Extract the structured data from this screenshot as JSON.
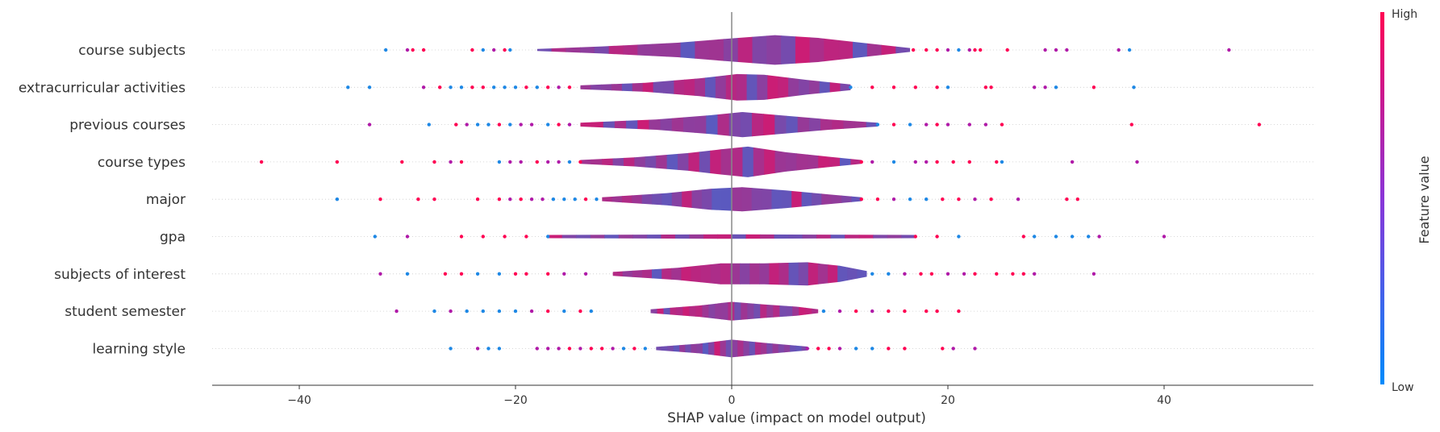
{
  "chart_data": {
    "type": "violin",
    "xlabel": "SHAP value (impact on model output)",
    "xlim": [
      -48,
      53
    ],
    "xticks": [
      -40,
      -20,
      0,
      20,
      40
    ],
    "features": [
      {
        "name": "course subjects",
        "min": -32,
        "max": 46,
        "outliers": [
          -32,
          -30,
          -29.5,
          -28.5,
          -24,
          -23,
          -22,
          -21,
          -20.5,
          16.8,
          18,
          19,
          20,
          21,
          22,
          22.5,
          23,
          25.5,
          29,
          30,
          31,
          35.8,
          36.8,
          46
        ],
        "shape": [
          [
            -18,
            0.06
          ],
          [
            -12,
            0.22
          ],
          [
            -5,
            0.45
          ],
          [
            0,
            0.72
          ],
          [
            4,
            0.92
          ],
          [
            8,
            0.75
          ],
          [
            12,
            0.45
          ],
          [
            16.5,
            0.12
          ]
        ]
      },
      {
        "name": "extracurricular activities",
        "min": -35.5,
        "max": 37.2,
        "outliers": [
          -35.5,
          -33.5,
          -28.5,
          -27,
          -26,
          -25,
          -24,
          -23,
          -22,
          -21,
          -20,
          -19,
          -18,
          -17,
          -16,
          -15,
          11,
          13,
          15,
          17,
          19,
          20,
          23.5,
          24,
          28,
          29,
          30,
          33.5,
          37.2
        ],
        "shape": [
          [
            -14,
            0.12
          ],
          [
            -8,
            0.28
          ],
          [
            -3,
            0.55
          ],
          [
            0.5,
            0.82
          ],
          [
            3,
            0.78
          ],
          [
            7,
            0.45
          ],
          [
            11,
            0.18
          ]
        ]
      },
      {
        "name": "previous courses",
        "min": -33.5,
        "max": 48.8,
        "outliers": [
          -33.5,
          -28,
          -25.5,
          -24.5,
          -23.5,
          -22.5,
          -21.5,
          -20.5,
          -19.5,
          -18.5,
          -17,
          -16,
          -15,
          13.5,
          15,
          16.5,
          18,
          19,
          20,
          22,
          23.5,
          25,
          37,
          48.8
        ],
        "shape": [
          [
            -14,
            0.12
          ],
          [
            -7,
            0.32
          ],
          [
            -2,
            0.58
          ],
          [
            1,
            0.78
          ],
          [
            5,
            0.55
          ],
          [
            9,
            0.32
          ],
          [
            13.5,
            0.12
          ]
        ]
      },
      {
        "name": "course types",
        "min": -43.5,
        "max": 37.5,
        "outliers": [
          -43.5,
          -36.5,
          -30.5,
          -27.5,
          -26,
          -25,
          -21.5,
          -20.5,
          -19.5,
          -18,
          -17,
          -16,
          -15,
          -14,
          12,
          13,
          15,
          17,
          18,
          19,
          20.5,
          22,
          24.5,
          25,
          31.5,
          37.5
        ],
        "shape": [
          [
            -14,
            0.12
          ],
          [
            -9,
            0.28
          ],
          [
            -4,
            0.55
          ],
          [
            -1,
            0.78
          ],
          [
            1.5,
            0.95
          ],
          [
            5,
            0.6
          ],
          [
            9,
            0.32
          ],
          [
            12,
            0.12
          ]
        ]
      },
      {
        "name": "major",
        "min": -36.5,
        "max": 32,
        "outliers": [
          -36.5,
          -32.5,
          -29,
          -27.5,
          -23.5,
          -21.5,
          -20.5,
          -19.5,
          -18.5,
          -17.5,
          -16.5,
          -15.5,
          -14.5,
          -13.5,
          -12.5,
          12,
          13.5,
          15,
          16.5,
          18,
          19.5,
          21,
          22.5,
          24,
          26.5,
          31,
          32
        ],
        "shape": [
          [
            -12,
            0.12
          ],
          [
            -6,
            0.38
          ],
          [
            -2,
            0.65
          ],
          [
            1,
            0.75
          ],
          [
            5,
            0.55
          ],
          [
            9,
            0.3
          ],
          [
            12,
            0.12
          ]
        ]
      },
      {
        "name": "gpa",
        "min": -33,
        "max": 40,
        "outliers": [
          -33,
          -30,
          -25,
          -23,
          -21,
          -19,
          -17,
          17,
          19,
          21,
          27,
          28,
          30,
          31.5,
          33,
          34,
          40
        ],
        "shape": [
          [
            -17,
            0.1
          ],
          [
            -8,
            0.12
          ],
          [
            0,
            0.14
          ],
          [
            8,
            0.12
          ],
          [
            17,
            0.1
          ]
        ]
      },
      {
        "name": "subjects of interest",
        "min": -32.5,
        "max": 33.5,
        "outliers": [
          -32.5,
          -30,
          -26.5,
          -25,
          -23.5,
          -21.5,
          -20,
          -19,
          -17,
          -15.5,
          -13.5,
          13,
          14.5,
          16,
          17.5,
          18.5,
          20,
          21.5,
          22.5,
          24.5,
          26,
          27,
          28,
          33.5
        ],
        "shape": [
          [
            -11,
            0.12
          ],
          [
            -5,
            0.38
          ],
          [
            -1,
            0.65
          ],
          [
            3,
            0.65
          ],
          [
            7,
            0.72
          ],
          [
            10,
            0.5
          ],
          [
            12.5,
            0.18
          ]
        ]
      },
      {
        "name": "student semester",
        "min": -31,
        "max": 21,
        "outliers": [
          -31,
          -27.5,
          -26,
          -24.5,
          -23,
          -21.5,
          -20,
          -18.5,
          -17,
          -15.5,
          -14,
          -13,
          8.5,
          10,
          11.5,
          13,
          14.5,
          16,
          18,
          19,
          21
        ],
        "shape": [
          [
            -7.5,
            0.12
          ],
          [
            -3,
            0.35
          ],
          [
            0,
            0.58
          ],
          [
            3,
            0.42
          ],
          [
            6,
            0.28
          ],
          [
            8,
            0.12
          ]
        ]
      },
      {
        "name": "learning style",
        "min": -26,
        "max": 22.5,
        "outliers": [
          -26,
          -23.5,
          -22.5,
          -21.5,
          -18,
          -17,
          -16,
          -15,
          -14,
          -13,
          -12,
          -11,
          -10,
          -9,
          -8,
          7,
          8,
          9,
          10,
          11.5,
          13,
          14.5,
          16,
          19.5,
          20.5,
          22.5
        ],
        "shape": [
          [
            -7,
            0.1
          ],
          [
            -3,
            0.3
          ],
          [
            0,
            0.55
          ],
          [
            3,
            0.35
          ],
          [
            7,
            0.12
          ]
        ]
      }
    ],
    "colorbar": {
      "label": "Feature value",
      "high_label": "High",
      "low_label": "Low",
      "high_color": "#ff0052",
      "low_color": "#008bfb"
    }
  }
}
